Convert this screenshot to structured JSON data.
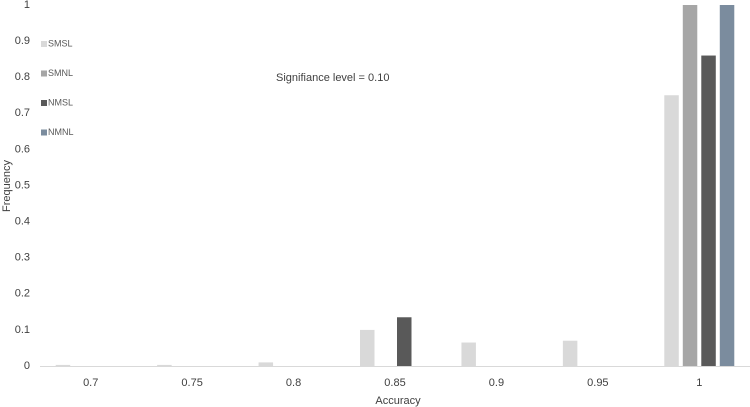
{
  "chart_data": {
    "type": "bar",
    "annotation": "Signifiance level = 0.10",
    "x_label": "Accuracy",
    "y_label": "Frequency",
    "categories": [
      "0.7",
      "0.75",
      "0.8",
      "0.85",
      "0.9",
      "0.95",
      "1"
    ],
    "series": [
      {
        "name": "SMSL",
        "color": "#d9d9d9",
        "values": [
          0.003,
          0.003,
          0.01,
          0.1,
          0.065,
          0.07,
          0.75
        ]
      },
      {
        "name": "SMNL",
        "color": "#a6a6a6",
        "values": [
          0,
          0,
          0,
          0,
          0,
          0,
          1
        ]
      },
      {
        "name": "NMSL",
        "color": "#595959",
        "values": [
          0,
          0,
          0,
          0.135,
          0,
          0,
          0.86
        ]
      },
      {
        "name": "NMNL",
        "color": "#7b8c9e",
        "values": [
          0,
          0,
          0,
          0,
          0,
          0,
          1
        ]
      }
    ],
    "ylim": [
      0,
      1
    ],
    "yticks": [
      0,
      0.1,
      0.2,
      0.3,
      0.4,
      0.5,
      0.6,
      0.7,
      0.8,
      0.9,
      1
    ],
    "grid": false,
    "legend": "top-left"
  }
}
